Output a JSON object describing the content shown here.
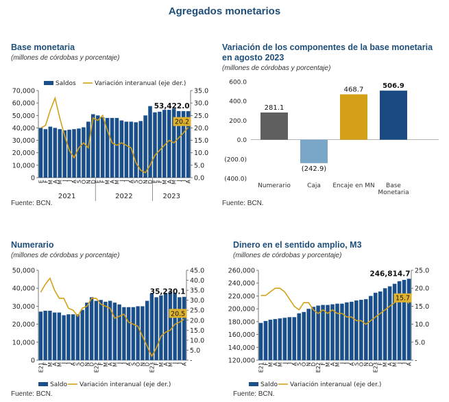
{
  "page_title": "Agregados monetarios",
  "colors": {
    "title": "#1f4e79",
    "bar": "#1a4f8b",
    "line": "#d4a017",
    "gray": "#5f5f5f",
    "lightblue": "#7aa6c7",
    "navy": "#1a4a82"
  },
  "panels": [
    {
      "title": "Base monetaria",
      "subtitle": "(millones de córdobas y porcentaje)",
      "source": "Fuente: BCN."
    },
    {
      "title": "Variación de los componentes de la base monetaria en agosto 2023",
      "title_line1": "Variación de los componentes de la base monetaria",
      "title_line2": "en agosto 2023",
      "subtitle": "(millones de córdobas y porcentaje)",
      "source": "Fuente: BCN."
    },
    {
      "title": "Numerario",
      "subtitle": "(millones de córdobas y porcentaje)",
      "source": "Fuente: BCN."
    },
    {
      "title": "Dinero en el sentido amplio, M3",
      "subtitle": "(millones de córdobas y porcentaje)",
      "source": "Fuente: BCN."
    }
  ],
  "chart_data": [
    {
      "type": "bar+line",
      "title": "Base monetaria",
      "legend": [
        "Saldos",
        "Variación interanual (eje der.)"
      ],
      "legend_position": "top",
      "ylim_left": [
        0,
        70000
      ],
      "yticks_left": [
        "0",
        "10,000",
        "20,000",
        "30,000",
        "40,000",
        "50,000",
        "60,000",
        "70,000"
      ],
      "ylim_right": [
        0,
        35
      ],
      "yticks_right": [
        "0.0",
        "5.0",
        "10.0",
        "15.0",
        "20.0",
        "25.0",
        "30.0",
        "35.0"
      ],
      "month_labels": [
        "E",
        "F",
        "M",
        "A",
        "M",
        "J",
        "J",
        "A",
        "S",
        "O",
        "N",
        "D",
        "E",
        "F",
        "M",
        "A",
        "M",
        "J",
        "J",
        "A",
        "S",
        "O",
        "N",
        "D",
        "E",
        "F",
        "M",
        "A",
        "M",
        "J",
        "J",
        "A"
      ],
      "year_labels": [
        "2021",
        "2022",
        "2023"
      ],
      "series": [
        {
          "name": "Saldos",
          "values": [
            40000,
            39000,
            41000,
            40000,
            39000,
            38000,
            38500,
            39000,
            39500,
            40500,
            45000,
            51000,
            50000,
            48500,
            48000,
            48000,
            48000,
            46000,
            45000,
            45000,
            44500,
            45500,
            50000,
            57500,
            52500,
            53000,
            54500,
            54500,
            55500,
            53500,
            53500,
            53422
          ]
        },
        {
          "name": "Variación interanual (eje der.)",
          "values": [
            20,
            21,
            27,
            32,
            24,
            17,
            11,
            8,
            12,
            14,
            12,
            24,
            23,
            25,
            19,
            14,
            13,
            14,
            13,
            12,
            6,
            3,
            2,
            5,
            9,
            11,
            13,
            15,
            14,
            16,
            18,
            20.2
          ]
        }
      ],
      "annotations": [
        "53,422.0",
        "20.2"
      ]
    },
    {
      "type": "bar",
      "title": "Variación de los componentes de la base monetaria en agosto 2023",
      "categories": [
        "Numerario",
        "Caja",
        "Encaje en MN",
        "Base Monetaria"
      ],
      "category_lines": [
        [
          "Numerario"
        ],
        [
          "Caja"
        ],
        [
          "Encaje en MN"
        ],
        [
          "Base",
          "Monetaria"
        ]
      ],
      "values": [
        281.1,
        -242.9,
        468.7,
        506.9
      ],
      "labels": [
        "281.1",
        "(242.9)",
        "468.7",
        "506.9"
      ],
      "ylim": [
        -400,
        600
      ],
      "yticks": [
        "(400.0)",
        "(200.0)",
        "0.0",
        "200.0",
        "400.0",
        "600.0"
      ]
    },
    {
      "type": "bar+line",
      "title": "Numerario",
      "legend": [
        "Saldo",
        "Variación interanual (eje der.)"
      ],
      "legend_position": "bottom",
      "ylim_left": [
        0,
        50000
      ],
      "yticks_left": [
        "0",
        "10,000",
        "20,000",
        "30,000",
        "40,000",
        "50,000"
      ],
      "ylim_right": [
        0,
        45
      ],
      "yticks_right": [
        "-",
        "5.0",
        "10.0",
        "15.0",
        "20.0",
        "25.0",
        "30.0",
        "35.0",
        "40.0",
        "45.0"
      ],
      "month_labels": [
        "E21",
        "F",
        "M",
        "A",
        "M",
        "J",
        "J",
        "A",
        "S",
        "O",
        "N",
        "D",
        "E22",
        "F",
        "M",
        "A",
        "M",
        "J",
        "J",
        "A",
        "S",
        "O",
        "N",
        "D",
        "E23",
        "F",
        "M",
        "A",
        "M",
        "J",
        "J",
        "A"
      ],
      "series": [
        {
          "name": "Saldo",
          "values": [
            27000,
            27500,
            27500,
            26500,
            26500,
            25000,
            25500,
            25500,
            25500,
            28000,
            32000,
            35000,
            33000,
            33500,
            32500,
            33000,
            32000,
            31000,
            29500,
            29500,
            29500,
            30000,
            30000,
            33000,
            37000,
            35000,
            36000,
            37000,
            38000,
            37500,
            35000,
            35230
          ]
        },
        {
          "name": "Variación interanual (eje der.)",
          "values": [
            34,
            38,
            41,
            35,
            31,
            31,
            26,
            25,
            22,
            26,
            27,
            31,
            31,
            28,
            27,
            26,
            21,
            22,
            23,
            19,
            18,
            17,
            12,
            7,
            2,
            6,
            12,
            14,
            15,
            18,
            19,
            20.5
          ]
        }
      ],
      "annotations": [
        "35,230.1",
        "20.5"
      ]
    },
    {
      "type": "bar+line",
      "title": "Dinero en el sentido amplio, M3",
      "legend": [
        "Saldo",
        "Variación interanual (eje der.)"
      ],
      "legend_position": "bottom",
      "ylim_left": [
        120000,
        260000
      ],
      "yticks_left": [
        "120,000",
        "140,000",
        "160,000",
        "180,000",
        "200,000",
        "220,000",
        "240,000",
        "260,000"
      ],
      "ylim_right": [
        0,
        25
      ],
      "yticks_right": [
        "-",
        "5.0",
        "10.0",
        "15.0",
        "20.0",
        "25.0"
      ],
      "month_labels": [
        "E21",
        "F",
        "M",
        "A",
        "M",
        "J",
        "J",
        "A",
        "S",
        "O",
        "N",
        "D",
        "E22",
        "F",
        "M",
        "A",
        "M",
        "J",
        "J",
        "A",
        "S",
        "O",
        "N",
        "D",
        "E23",
        "F",
        "M",
        "A",
        "M",
        "J",
        "J",
        "A"
      ],
      "series": [
        {
          "name": "Saldo",
          "values": [
            178000,
            181000,
            183000,
            184000,
            185000,
            186000,
            187000,
            187000,
            193000,
            195000,
            200000,
            203000,
            205000,
            206000,
            206000,
            207000,
            208000,
            208000,
            210000,
            211000,
            213000,
            214000,
            215000,
            220000,
            225000,
            227000,
            232000,
            235000,
            239000,
            243000,
            245000,
            246815
          ]
        },
        {
          "name": "Variación interanual (eje der.)",
          "values": [
            18,
            18,
            19,
            20,
            20,
            19,
            17,
            15,
            14,
            16,
            16,
            14,
            13,
            14,
            13,
            14,
            13,
            13,
            12,
            12,
            11,
            11,
            10,
            11,
            12,
            13,
            14,
            15,
            16,
            17,
            18,
            15.7
          ]
        }
      ],
      "annotations": [
        "246,814.7",
        "15.7"
      ]
    }
  ]
}
